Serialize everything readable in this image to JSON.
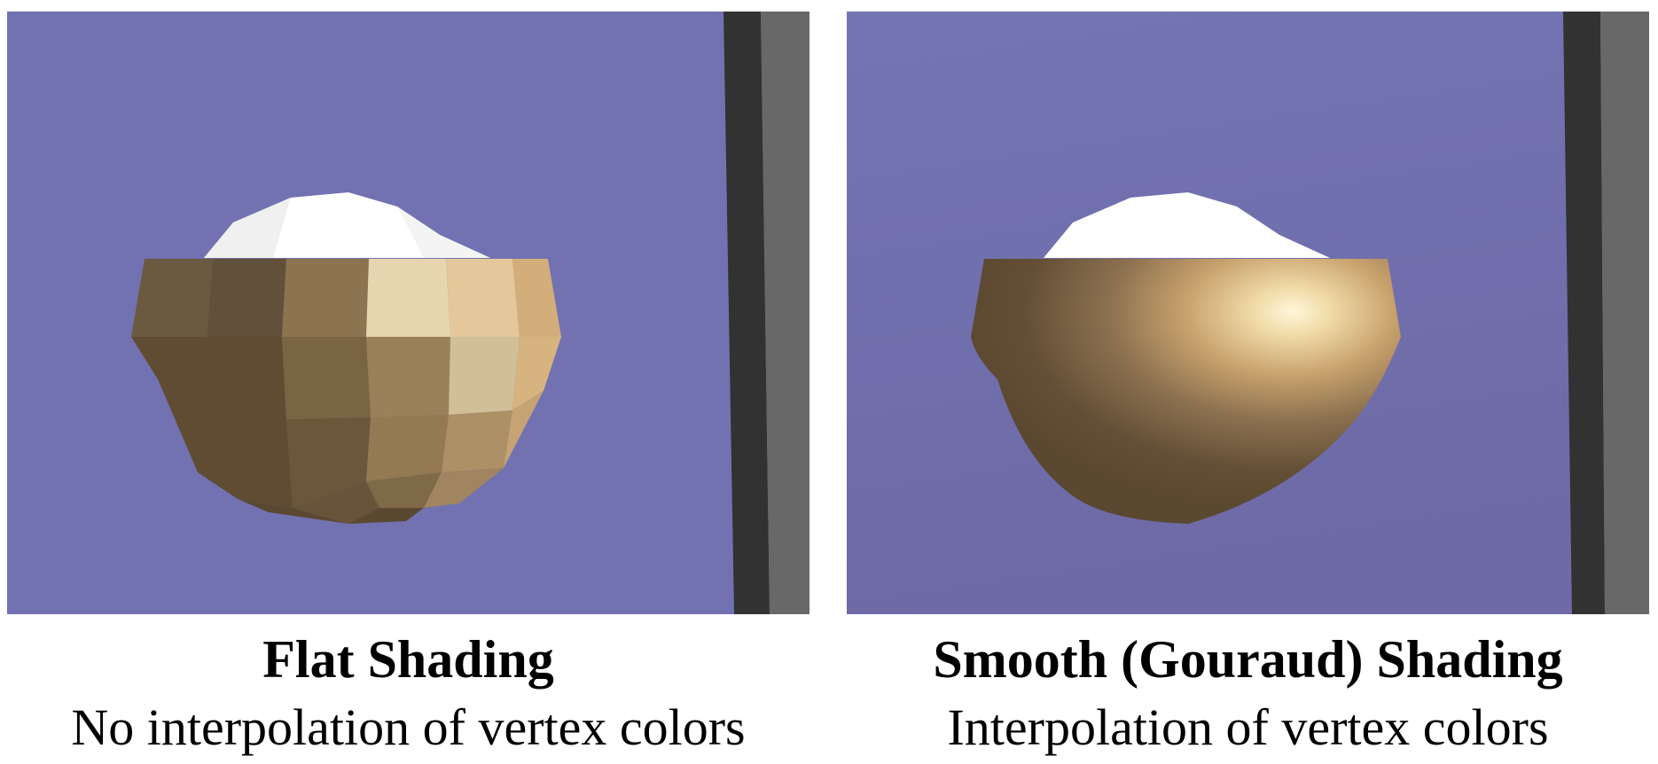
{
  "colors": {
    "background": "#7272b2",
    "pole_dark": "#323232",
    "pole_light": "#686868",
    "cap_white": "#ffffff",
    "bowl_dark": "#5f4c33",
    "bowl_highlight": "#fff6da"
  },
  "panels": [
    {
      "id": "flat",
      "title": "Flat Shading",
      "subtitle": "No interpolation of vertex colors"
    },
    {
      "id": "smooth",
      "title": "Smooth (Gouraud) Shading",
      "subtitle": "Interpolation of vertex colors"
    }
  ]
}
